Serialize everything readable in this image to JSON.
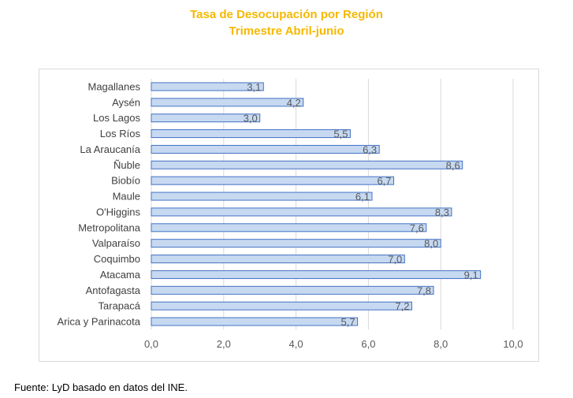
{
  "chart_data": {
    "type": "bar",
    "orientation": "horizontal",
    "title": "Tasa de Desocupación por Región",
    "subtitle": "Trimestre Abril-junio",
    "categories": [
      "Magallanes",
      "Aysén",
      "Los Lagos",
      "Los Ríos",
      "La Araucanía",
      "Ñuble",
      "Biobío",
      "Maule",
      "O'Higgins",
      "Metropolitana",
      "Valparaíso",
      "Coquimbo",
      "Atacama",
      "Antofagasta",
      "Tarapacá",
      "Arica y Parinacota"
    ],
    "values": [
      3.1,
      4.2,
      3.0,
      5.5,
      6.3,
      8.6,
      6.7,
      6.1,
      8.3,
      7.6,
      8.0,
      7.0,
      9.1,
      7.8,
      7.2,
      5.7
    ],
    "value_labels": [
      "3,1",
      "4,2",
      "3,0",
      "5,5",
      "6,3",
      "8,6",
      "6,7",
      "6,1",
      "8,3",
      "7,6",
      "8,0",
      "7,0",
      "9,1",
      "7,8",
      "7,2",
      "5,7"
    ],
    "x_ticks": [
      "0,0",
      "2,0",
      "4,0",
      "6,0",
      "8,0",
      "10,0"
    ],
    "xlim": [
      0,
      10
    ],
    "grid": true,
    "bar_color": "#C6D9F1",
    "bar_edge_color": "#4472C4",
    "title_color": "#F5B800"
  },
  "source": "Fuente: LyD basado en datos del INE."
}
